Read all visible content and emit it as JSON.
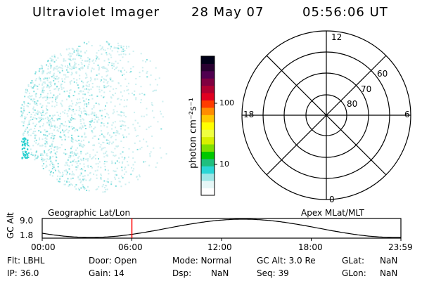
{
  "header": {
    "instrument": "Ultraviolet Imager",
    "date": "28 May 07",
    "time": "05:56:06 UT"
  },
  "colorbar": {
    "unit_label": "photon cm⁻²s⁻¹",
    "ticks": [
      "100",
      "10"
    ],
    "colors": [
      "#ffffff",
      "#e6f7f7",
      "#9fe6e6",
      "#2bd6d6",
      "#1fbf7f",
      "#00c800",
      "#7fe000",
      "#d8f000",
      "#f0ff40",
      "#ffff00",
      "#ffc800",
      "#ff8c00",
      "#ff3c00",
      "#e00020",
      "#b00030",
      "#800040",
      "#500050",
      "#280030",
      "#000018"
    ]
  },
  "polar": {
    "mlt_labels": {
      "top": "12",
      "left": "18",
      "right": "6",
      "bottom": "0"
    },
    "lat_labels": [
      "60",
      "70",
      "80"
    ]
  },
  "timeline": {
    "left_label": "Geographic Lat/Lon",
    "right_label": "Apex MLat/MLT",
    "axis_title": "GC Alt",
    "y_max": "9.0",
    "y_min": "1.8",
    "x_ticks": [
      "00:00",
      "06:00",
      "12:00",
      "18:00",
      "23:59"
    ],
    "current_time_fraction": 0.25
  },
  "info": {
    "flt": "Flt: LBHL",
    "ip": "IP: 36.0",
    "door": "Door: Open",
    "gain": "Gain: 14",
    "mode": "Mode: Normal",
    "dsp_label": "Dsp:",
    "dsp_value": "NaN",
    "gcalt": "GC Alt: 3.0 Re",
    "seq": "Seq: 39",
    "glat_label": "GLat:",
    "glat_value": "NaN",
    "glon_label": "GLon:",
    "glon_value": "NaN"
  }
}
